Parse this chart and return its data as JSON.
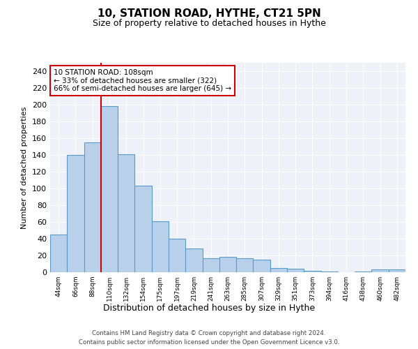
{
  "title": "10, STATION ROAD, HYTHE, CT21 5PN",
  "subtitle": "Size of property relative to detached houses in Hythe",
  "xlabel": "Distribution of detached houses by size in Hythe",
  "ylabel": "Number of detached properties",
  "categories": [
    "44sqm",
    "66sqm",
    "88sqm",
    "110sqm",
    "132sqm",
    "154sqm",
    "175sqm",
    "197sqm",
    "219sqm",
    "241sqm",
    "263sqm",
    "285sqm",
    "307sqm",
    "329sqm",
    "351sqm",
    "373sqm",
    "394sqm",
    "416sqm",
    "438sqm",
    "460sqm",
    "482sqm"
  ],
  "values": [
    45,
    140,
    155,
    198,
    141,
    103,
    61,
    40,
    28,
    17,
    18,
    17,
    15,
    5,
    4,
    2,
    1,
    0,
    1,
    3,
    3
  ],
  "bar_color": "#b8d0ea",
  "bar_edge_color": "#5a9ac8",
  "annotation_text": "10 STATION ROAD: 108sqm\n← 33% of detached houses are smaller (322)\n66% of semi-detached houses are larger (645) →",
  "annotation_box_color": "white",
  "annotation_box_edge_color": "#cc0000",
  "red_line_color": "#cc0000",
  "footer_line1": "Contains HM Land Registry data © Crown copyright and database right 2024.",
  "footer_line2": "Contains public sector information licensed under the Open Government Licence v3.0.",
  "ylim": [
    0,
    250
  ],
  "yticks": [
    0,
    20,
    40,
    60,
    80,
    100,
    120,
    140,
    160,
    180,
    200,
    220,
    240
  ],
  "background_color": "#eef2f8",
  "grid_color": "#ffffff",
  "red_line_x": 3.0
}
